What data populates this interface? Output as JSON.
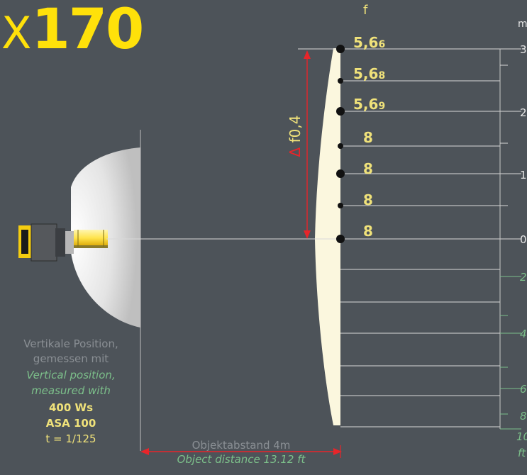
{
  "title": {
    "prefix": "X",
    "model": "170"
  },
  "aperture_header": "f",
  "unit_header": "m",
  "aperture_values": [
    {
      "main": "5,6",
      "sub": "6"
    },
    {
      "main": "5,6",
      "sub": "8"
    },
    {
      "main": "5,6",
      "sub": "9"
    },
    {
      "main": "8",
      "sub": ""
    },
    {
      "main": "8",
      "sub": ""
    },
    {
      "main": "8",
      "sub": ""
    },
    {
      "main": "8",
      "sub": ""
    }
  ],
  "meter_ticks": [
    "3",
    "2",
    "1",
    "0"
  ],
  "feet_ticks": [
    "2",
    "4",
    "6",
    "8",
    "10",
    "ft"
  ],
  "delta_label": {
    "symbol": "Δ",
    "value": "f0,4"
  },
  "description": {
    "de_line1": "Vertikale Position,",
    "de_line2": "gemessen mit",
    "en_line1": "Vertical position,",
    "en_line2": "measured with",
    "power": "400 Ws",
    "iso": "ASA 100",
    "shutter": "t = 1/125"
  },
  "object_distance": {
    "de": "Objektabstand  4m",
    "en": "Object distance 13.12 ft"
  },
  "colors": {
    "background": "#4d5359",
    "yellow": "#f0e27a",
    "red": "#e8252a",
    "green": "#7cbf8a",
    "panel": "#fbf7de"
  }
}
